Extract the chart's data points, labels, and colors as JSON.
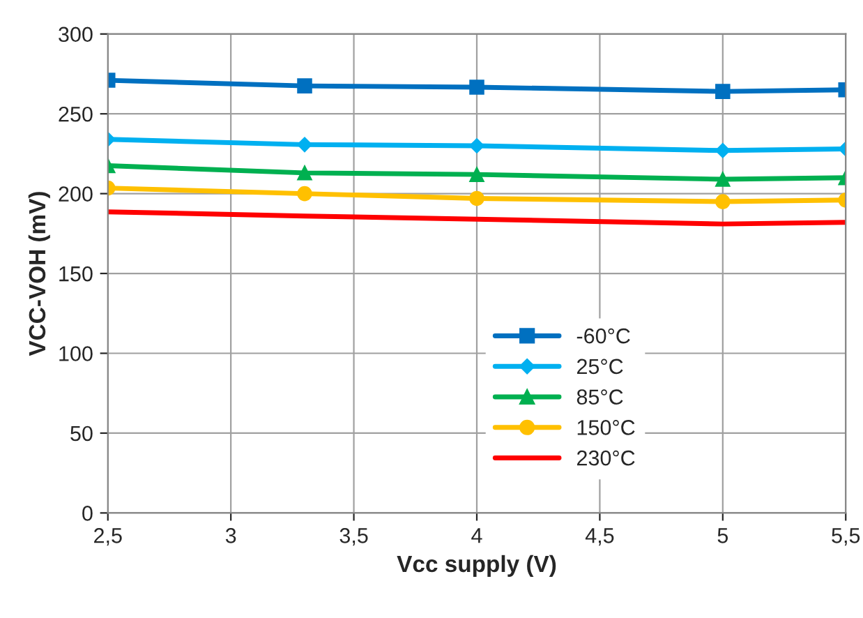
{
  "chart_data": {
    "type": "line",
    "xlabel": "Vcc supply (V)",
    "ylabel": "VCC-VOH (mV)",
    "x": [
      2.5,
      3.3,
      4,
      5,
      5.5
    ],
    "series": [
      {
        "name": "-60°C",
        "color": "#0070c0",
        "marker": "square",
        "values": [
          271,
          267.5,
          266.7,
          264,
          265
        ]
      },
      {
        "name": "25°C",
        "color": "#00b0f0",
        "marker": "diamond",
        "values": [
          234,
          230.7,
          230,
          227,
          228
        ]
      },
      {
        "name": "85°C",
        "color": "#00b050",
        "marker": "triangle",
        "values": [
          217.5,
          213,
          212,
          209,
          210
        ]
      },
      {
        "name": "150°C",
        "color": "#ffc000",
        "marker": "circle",
        "values": [
          203.5,
          200,
          197,
          195,
          196
        ]
      },
      {
        "name": "230°C",
        "color": "#ff0000",
        "marker": "none",
        "values": [
          188.6,
          186,
          184,
          181,
          182
        ]
      }
    ],
    "xlim": [
      2.5,
      5.5
    ],
    "xticks": [
      {
        "value": 2.5,
        "label": "2,5"
      },
      3,
      {
        "value": 3.5,
        "label": "3,5"
      },
      4,
      {
        "value": 4.5,
        "label": "4,5"
      },
      5,
      {
        "value": 5.5,
        "label": "5,5"
      }
    ],
    "ylim": [
      0,
      300
    ],
    "yticks": [
      0,
      50,
      100,
      150,
      200,
      250,
      300
    ],
    "grid": true,
    "legend": "bottom",
    "line_style": "solid"
  }
}
